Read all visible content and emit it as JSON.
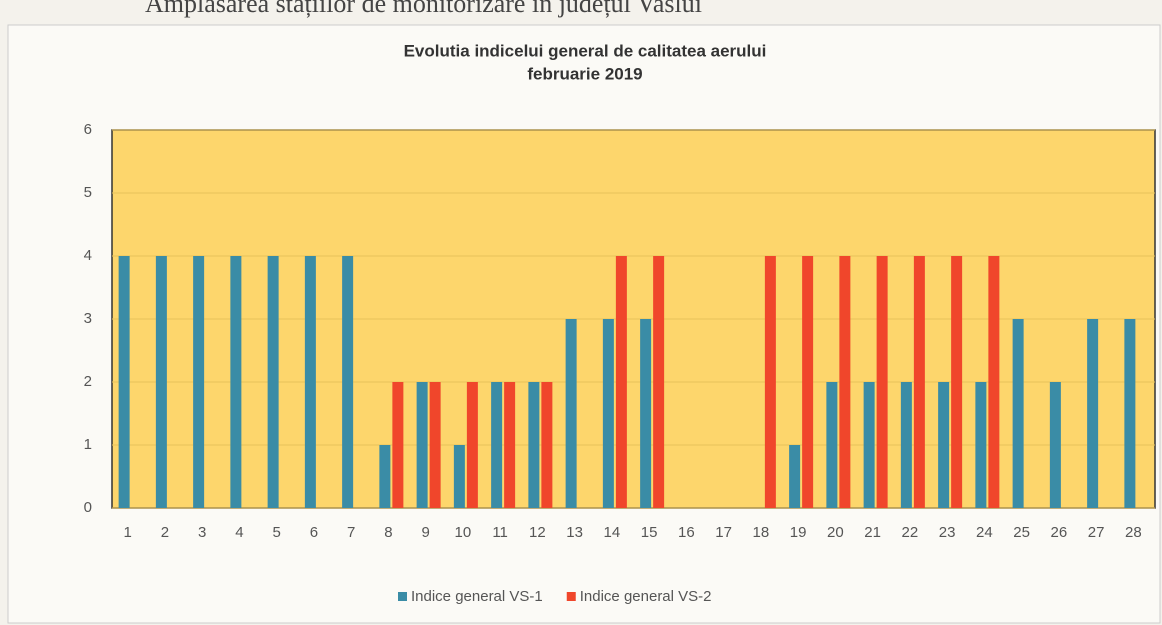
{
  "heading": "Amplasarea stațiilor de monitorizare în județul Vaslui",
  "chart_data": {
    "type": "bar",
    "title": "Evolutia indicelui general de calitatea aerului",
    "subtitle": "februarie 2019",
    "categories": [
      "1",
      "2",
      "3",
      "4",
      "5",
      "6",
      "7",
      "8",
      "9",
      "10",
      "11",
      "12",
      "13",
      "14",
      "15",
      "16",
      "17",
      "18",
      "19",
      "20",
      "21",
      "22",
      "23",
      "24",
      "25",
      "26",
      "27",
      "28"
    ],
    "series": [
      {
        "name": "Indice general VS-1",
        "color": "#3a8ca6",
        "values": [
          4,
          4,
          4,
          4,
          4,
          4,
          4,
          1,
          2,
          1,
          2,
          2,
          3,
          3,
          3,
          null,
          null,
          null,
          1,
          2,
          2,
          2,
          2,
          2,
          3,
          2,
          3,
          3
        ]
      },
      {
        "name": "Indice general VS-2",
        "color": "#f0462b",
        "values": [
          null,
          null,
          null,
          null,
          null,
          null,
          null,
          2,
          2,
          2,
          2,
          2,
          null,
          4,
          4,
          null,
          null,
          4,
          4,
          4,
          4,
          4,
          4,
          4,
          null,
          null,
          null,
          null
        ]
      }
    ],
    "ylim": [
      0,
      6
    ],
    "yticks": [
      0,
      1,
      2,
      3,
      4,
      5,
      6
    ],
    "grid": true,
    "legend": "bottom"
  }
}
